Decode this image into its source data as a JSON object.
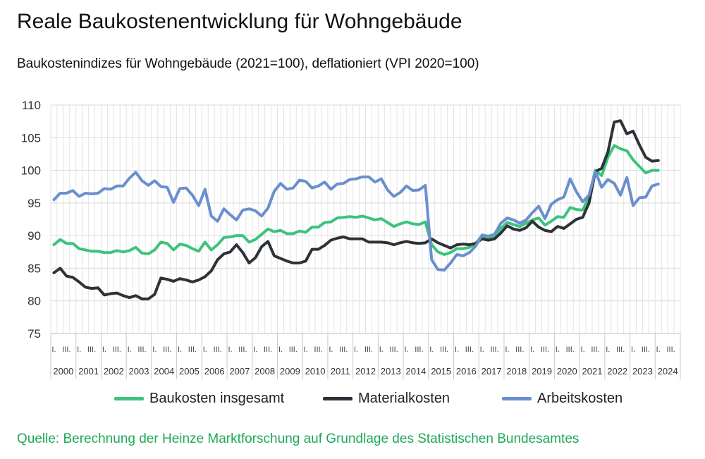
{
  "title": "Reale Baukostenentwicklung für Wohngebäude",
  "subtitle": "Baukostenindizes für Wohngebäude (2021=100), deflationiert (VPI 2020=100)",
  "source": "Quelle: Berechnung der Heinze Marktforschung auf Grundlage des Statistischen Bundesamtes",
  "chart_data": {
    "type": "line",
    "title": "Reale Baukostenentwicklung für Wohngebäude",
    "subtitle": "Baukostenindizes für Wohngebäude (2021=100), deflationiert (VPI 2020=100)",
    "ylim": [
      75,
      110
    ],
    "yticks": [
      75,
      80,
      85,
      90,
      95,
      100,
      105,
      110
    ],
    "grid": true,
    "legend": "bottom",
    "years": [
      "2000",
      "2001",
      "2002",
      "2003",
      "2004",
      "2005",
      "2006",
      "2007",
      "2008",
      "2009",
      "2010",
      "2011",
      "2012",
      "2013",
      "2014",
      "2015",
      "2016",
      "2017",
      "2018",
      "2019",
      "2020",
      "2021",
      "2022",
      "2023",
      "2024"
    ],
    "quarter_tick_labels": [
      "I.",
      "III."
    ],
    "series": [
      {
        "name": "Baukosten insgesamt",
        "color": "#3cc47c",
        "values": [
          88.6,
          89.4,
          88.8,
          88.8,
          88.0,
          87.8,
          87.6,
          87.6,
          87.4,
          87.4,
          87.7,
          87.5,
          87.7,
          88.2,
          87.3,
          87.2,
          87.8,
          89.0,
          88.8,
          87.8,
          88.7,
          88.5,
          88.0,
          87.6,
          89.0,
          87.8,
          88.6,
          89.7,
          89.8,
          90.0,
          90.0,
          89.0,
          89.4,
          90.2,
          91.0,
          90.6,
          90.8,
          90.3,
          90.3,
          90.7,
          90.5,
          91.3,
          91.3,
          92.0,
          92.1,
          92.7,
          92.8,
          92.9,
          92.8,
          93.0,
          92.7,
          92.4,
          92.6,
          92.0,
          91.4,
          91.8,
          92.1,
          91.8,
          91.7,
          92.1,
          88.6,
          87.5,
          87.1,
          87.4,
          88.0,
          88.0,
          88.2,
          88.8,
          90.0,
          89.6,
          89.8,
          91.1,
          92.0,
          91.7,
          91.4,
          91.9,
          92.4,
          92.7,
          91.6,
          92.2,
          92.9,
          92.8,
          94.3,
          94.0,
          93.9,
          96.0,
          100.0,
          99.2,
          102.0,
          103.8,
          103.3,
          103.0,
          101.6,
          100.6,
          99.6,
          100.0,
          100.0
        ]
      },
      {
        "name": "Materialkosten",
        "color": "#2d3238",
        "values": [
          84.3,
          85.0,
          83.8,
          83.6,
          82.9,
          82.1,
          81.9,
          82.0,
          80.9,
          81.1,
          81.2,
          80.8,
          80.5,
          80.8,
          80.3,
          80.3,
          81.0,
          83.5,
          83.3,
          83.0,
          83.4,
          83.2,
          82.9,
          83.2,
          83.7,
          84.6,
          86.3,
          87.2,
          87.5,
          88.6,
          87.4,
          85.8,
          86.6,
          88.3,
          89.1,
          86.9,
          86.5,
          86.1,
          85.8,
          85.8,
          86.1,
          87.9,
          87.9,
          88.5,
          89.3,
          89.6,
          89.8,
          89.5,
          89.5,
          89.5,
          89.0,
          89.0,
          89.0,
          88.9,
          88.6,
          88.9,
          89.1,
          88.9,
          88.8,
          88.9,
          89.5,
          88.9,
          88.5,
          88.1,
          88.6,
          88.7,
          88.6,
          88.8,
          89.5,
          89.3,
          89.5,
          90.4,
          91.5,
          91.0,
          90.8,
          91.2,
          92.2,
          91.3,
          90.8,
          90.6,
          91.4,
          91.1,
          91.8,
          92.5,
          92.8,
          95.0,
          99.8,
          100.3,
          102.8,
          107.4,
          107.6,
          105.6,
          106.0,
          103.9,
          102.0,
          101.4,
          101.5
        ]
      },
      {
        "name": "Arbeitskosten",
        "color": "#6a8fce",
        "values": [
          95.5,
          96.5,
          96.5,
          96.9,
          96.0,
          96.5,
          96.4,
          96.5,
          97.2,
          97.1,
          97.6,
          97.6,
          98.8,
          99.7,
          98.4,
          97.7,
          98.4,
          97.5,
          97.4,
          95.1,
          97.2,
          97.3,
          96.2,
          94.6,
          97.1,
          93.0,
          92.2,
          94.1,
          93.2,
          92.4,
          93.9,
          94.1,
          93.8,
          93.0,
          94.2,
          96.8,
          98.0,
          97.1,
          97.3,
          98.5,
          98.3,
          97.3,
          97.6,
          98.2,
          97.1,
          97.9,
          98.0,
          98.6,
          98.7,
          99.0,
          99.0,
          98.2,
          98.7,
          97.0,
          96.0,
          96.6,
          97.6,
          96.9,
          97.0,
          97.7,
          86.3,
          84.8,
          84.7,
          85.8,
          87.1,
          86.9,
          87.4,
          88.4,
          90.1,
          89.9,
          90.2,
          91.9,
          92.7,
          92.4,
          91.9,
          92.4,
          93.5,
          94.5,
          92.6,
          94.8,
          95.5,
          95.9,
          98.7,
          96.7,
          95.2,
          96.2,
          99.8,
          97.4,
          98.6,
          98.0,
          96.2,
          98.9,
          94.6,
          95.8,
          95.9,
          97.6,
          97.9
        ]
      }
    ]
  }
}
